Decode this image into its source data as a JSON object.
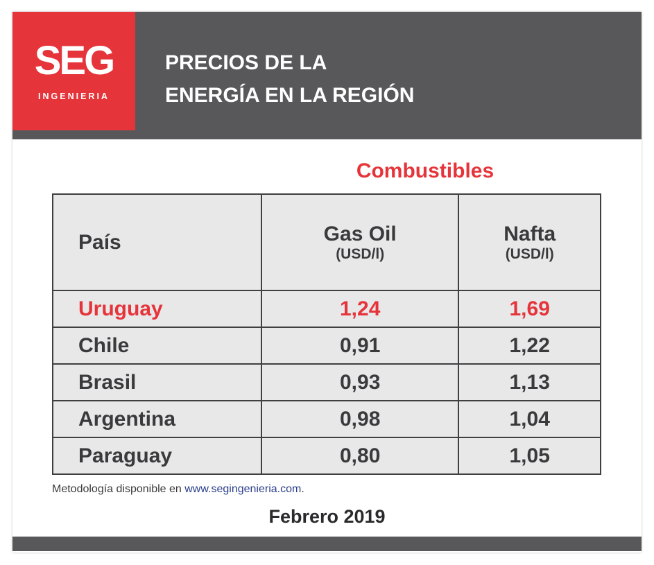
{
  "logo": {
    "main": "SEG",
    "sub": "INGENIERIA"
  },
  "header": {
    "title_line1": "PRECIOS DE LA",
    "title_line2": "ENERGÍA EN LA REGIÓN"
  },
  "section_title": "Combustibles",
  "table": {
    "header": {
      "country": "País",
      "col1_name": "Gas Oil",
      "col1_unit": "(USD/l)",
      "col2_name": "Nafta",
      "col2_unit": "(USD/l)"
    },
    "rows": [
      {
        "country": "Uruguay",
        "gas_oil": "1,24",
        "nafta": "1,69"
      },
      {
        "country": "Chile",
        "gas_oil": "0,91",
        "nafta": "1,22"
      },
      {
        "country": "Brasil",
        "gas_oil": "0,93",
        "nafta": "1,13"
      },
      {
        "country": "Argentina",
        "gas_oil": "0,98",
        "nafta": "1,04"
      },
      {
        "country": "Paraguay",
        "gas_oil": "0,80",
        "nafta": "1,05"
      }
    ]
  },
  "methodology": {
    "prefix": "Metodología disponible en ",
    "link": "www.segingenieria.com",
    "suffix": "."
  },
  "date": "Febrero 2019",
  "colors": {
    "accent": "#e5343a",
    "header_gray": "#58585a",
    "table_bg": "#e8e8e9"
  }
}
